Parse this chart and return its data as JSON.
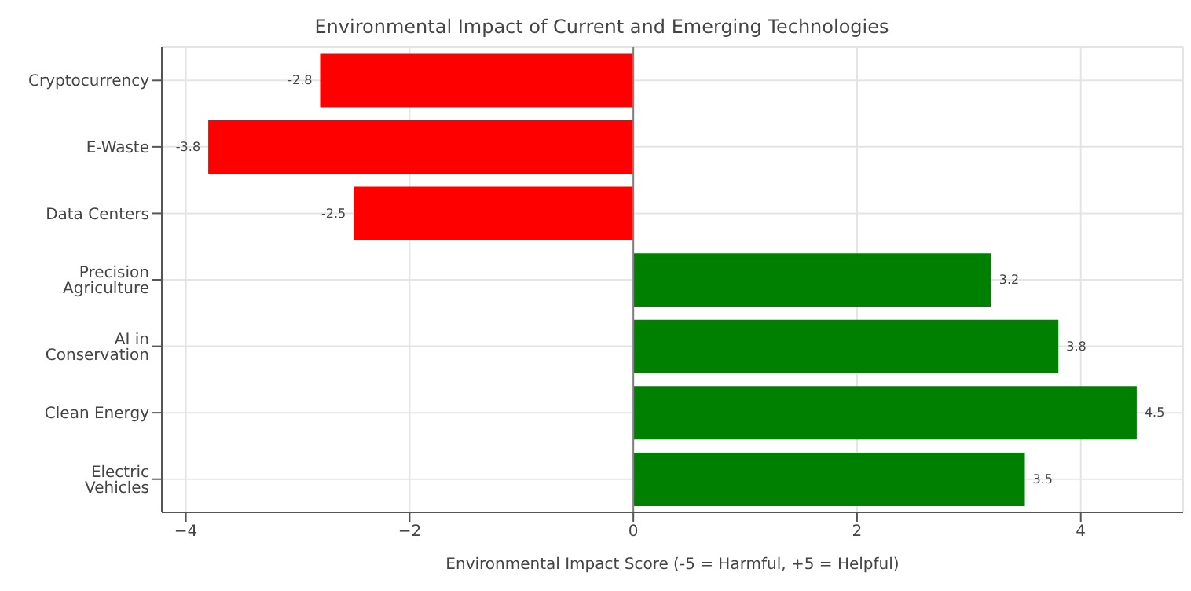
{
  "chart_data": {
    "type": "bar",
    "orientation": "horizontal",
    "title": "Environmental Impact of Current and Emerging Technologies",
    "xlabel": "Environmental Impact Score (-5 = Harmful, +5 = Helpful)",
    "categories": [
      "Cryptocurrency",
      "E-Waste",
      "Data Centers",
      "Precision Agriculture",
      "AI in Conservation",
      "Clean Energy",
      "Electric Vehicles"
    ],
    "values": [
      -2.8,
      -3.8,
      -2.5,
      3.2,
      3.8,
      4.5,
      3.5
    ],
    "colors": [
      "#ff0000",
      "#ff0000",
      "#ff0000",
      "#008000",
      "#008000",
      "#008000",
      "#008000"
    ],
    "xlim": [
      -4.215,
      4.915
    ],
    "xticks": [
      -4,
      -2,
      0,
      2,
      4
    ],
    "ref_lines": [
      {
        "axis": "x",
        "value": 0,
        "color": "#808080"
      }
    ],
    "grid": true,
    "data_labels": true
  }
}
